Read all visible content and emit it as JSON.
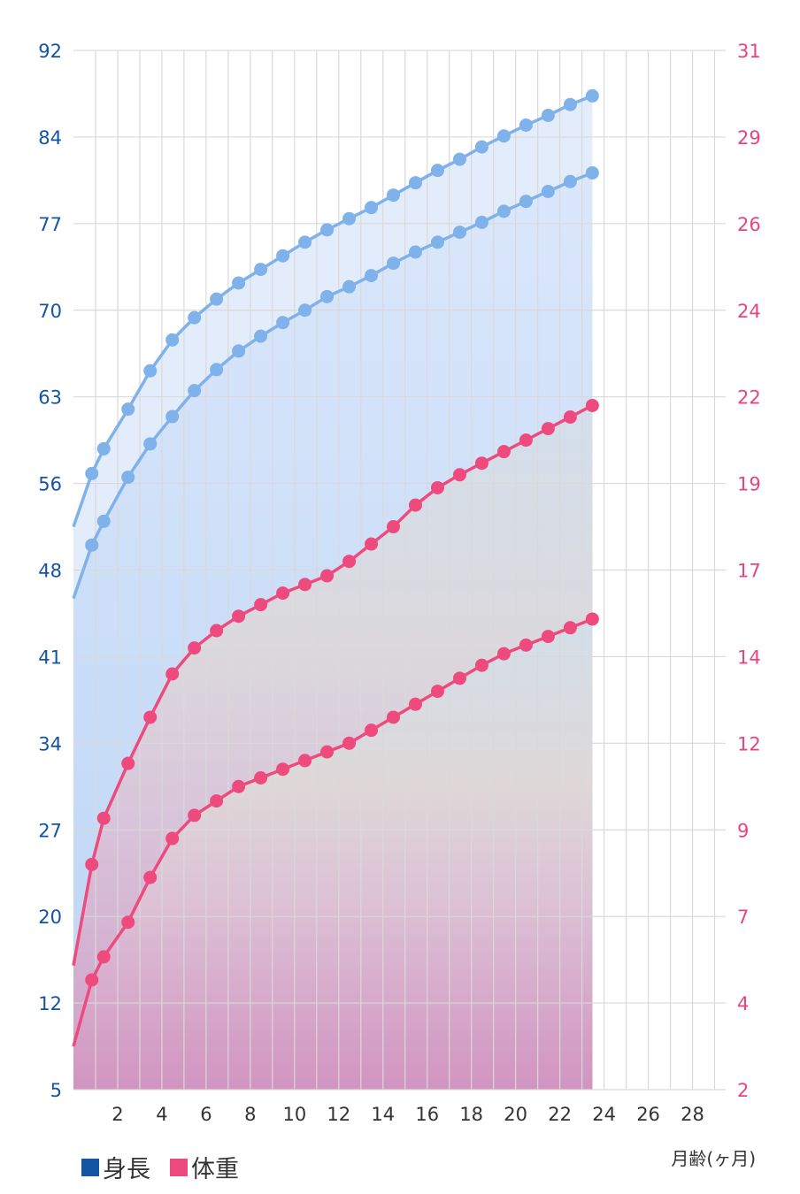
{
  "chart_data": {
    "type": "line",
    "xlabel": "月齢(ヶ月)",
    "x_ticks": [
      2,
      4,
      6,
      8,
      10,
      12,
      14,
      16,
      18,
      20,
      22,
      24,
      26,
      28
    ],
    "xlim": [
      0,
      29.5
    ],
    "y_left_ticks": [
      5,
      12,
      20,
      27,
      34,
      41,
      48,
      56,
      63,
      70,
      77,
      84,
      92
    ],
    "y_right_ticks": [
      2,
      4,
      7,
      9,
      12,
      14,
      17,
      19,
      22,
      24,
      26,
      29,
      31
    ],
    "x": [
      0,
      0.83,
      1.37,
      2.47,
      3.47,
      4.47,
      5.47,
      6.47,
      7.47,
      8.47,
      9.47,
      10.47,
      11.47,
      12.47,
      13.47,
      14.47,
      15.47,
      16.47,
      17.47,
      18.47,
      19.47,
      20.47,
      21.47,
      22.47,
      23.47
    ],
    "series": [
      {
        "name": "身長",
        "axis": "left",
        "color": "#7fb2ea",
        "values": [
          52,
          56.8,
          58.8,
          62.0,
          65.1,
          67.6,
          69.4,
          70.9,
          72.2,
          73.3,
          74.4,
          75.5,
          76.5,
          77.4,
          78.3,
          79.3,
          80.3,
          81.3,
          82.2,
          83.2,
          84.1,
          85.1,
          86.0,
          87.0,
          87.8
        ]
      },
      {
        "name": "身長",
        "axis": "left",
        "color": "#7fb2ea",
        "values": [
          45.7,
          50.3,
          52.5,
          56.5,
          59.2,
          61.4,
          63.5,
          65.2,
          66.7,
          67.9,
          69.0,
          70.0,
          71.1,
          71.9,
          72.8,
          73.8,
          74.7,
          75.5,
          76.3,
          77.1,
          78.0,
          78.8,
          79.6,
          80.4,
          81.1
        ]
      },
      {
        "name": "体重",
        "axis": "right",
        "color": "#ef4a7e",
        "values": [
          5.3,
          8.2,
          9.4,
          11.3,
          12.6,
          13.6,
          14.3,
          14.9,
          15.4,
          15.8,
          16.2,
          16.5,
          16.8,
          17.2,
          17.6,
          18.0,
          18.5,
          18.9,
          19.3,
          19.7,
          20.1,
          20.5,
          20.9,
          21.3,
          21.7
        ]
      },
      {
        "name": "体重",
        "axis": "right",
        "color": "#ef4a7e",
        "values": [
          3.0,
          4.8,
          5.6,
          6.8,
          7.9,
          8.8,
          9.5,
          10.0,
          10.5,
          10.8,
          11.1,
          11.4,
          11.7,
          12.0,
          12.3,
          12.6,
          12.9,
          13.2,
          13.5,
          13.8,
          14.1,
          14.4,
          14.7,
          15.0,
          15.3
        ]
      }
    ],
    "legend": [
      {
        "label": "身長",
        "color": "#1354a3"
      },
      {
        "label": "体重",
        "color": "#ef4a7e"
      }
    ],
    "left_axis_color": "#1354a3",
    "right_axis_color": "#e8457a",
    "grid": true,
    "legend_position": "bottom-left"
  }
}
